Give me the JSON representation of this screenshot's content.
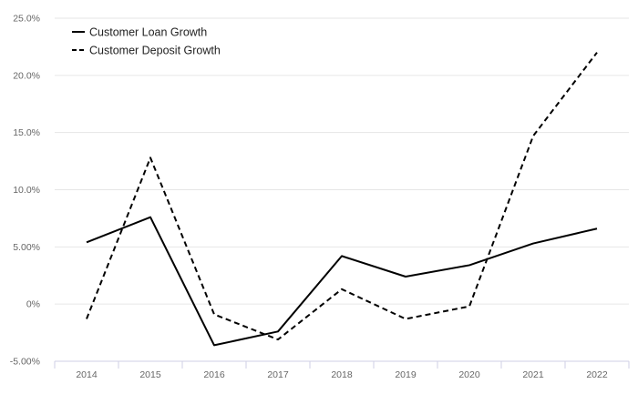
{
  "chart_data": {
    "type": "line",
    "categories": [
      "2014",
      "2015",
      "2016",
      "2017",
      "2018",
      "2019",
      "2020",
      "2021",
      "2022"
    ],
    "y_ticks": [
      "-5.00%",
      "0%",
      "5.00%",
      "10.0%",
      "15.0%",
      "20.0%",
      "25.0%"
    ],
    "ylim": [
      -5,
      25
    ],
    "grid": "horizontal",
    "legend_position": "top-left",
    "series": [
      {
        "name": "Customer Loan Growth",
        "values": [
          5.4,
          7.6,
          -3.6,
          -2.4,
          4.2,
          2.4,
          3.4,
          5.3,
          6.6
        ],
        "color": "#000000",
        "dash": "solid"
      },
      {
        "name": "Customer Deposit Growth",
        "values": [
          -1.3,
          12.8,
          -0.9,
          -3.1,
          1.3,
          -1.3,
          -0.2,
          14.7,
          22.0
        ],
        "color": "#000000",
        "dash": "dashed"
      }
    ]
  }
}
